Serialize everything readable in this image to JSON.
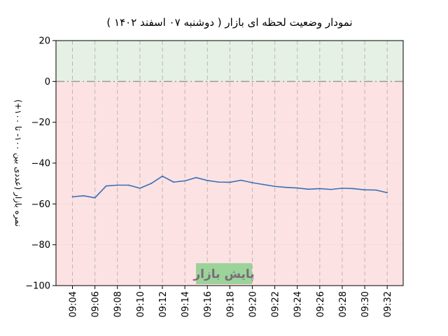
{
  "chart_data": {
    "type": "line",
    "title": "نمودار وضعیت لحظه ای بازار   ( دوشنبه ۰۷ اسفند ۱۴۰۲ )",
    "ylabel": "نمره بازار (عددی بین ۱۰۰- تا ۱۰۰+)",
    "xlabel": "",
    "ylim": [
      -100,
      20
    ],
    "yticks": [
      20,
      0,
      -20,
      -40,
      -60,
      -80,
      -100
    ],
    "ytick_labels": [
      "20",
      "0",
      "−20",
      "−40",
      "−60",
      "−80",
      "−100"
    ],
    "xticks": [
      "09:04",
      "09:06",
      "09:08",
      "09:10",
      "09:12",
      "09:14",
      "09:16",
      "09:18",
      "09:20",
      "09:22",
      "09:24",
      "09:26",
      "09:28",
      "09:30",
      "09:32"
    ],
    "grid": true,
    "zero_line": 0,
    "regions": [
      {
        "from": 0,
        "to": 20,
        "color": "#e5f1e4"
      },
      {
        "from": -100,
        "to": 0,
        "color": "#fde2e3"
      }
    ],
    "series": [
      {
        "color": "#3a6fb5",
        "x": [
          "09:04",
          "09:05",
          "09:06",
          "09:07",
          "09:08",
          "09:09",
          "09:10",
          "09:11",
          "09:12",
          "09:13",
          "09:14",
          "09:15",
          "09:16",
          "09:17",
          "09:18",
          "09:19",
          "09:20",
          "09:21",
          "09:22",
          "09:23",
          "09:24",
          "09:25",
          "09:26",
          "09:27",
          "09:28",
          "09:29",
          "09:30",
          "09:31",
          "09:32"
        ],
        "values": [
          -56.5,
          -56,
          -57,
          -51.2,
          -50.8,
          -50.8,
          -52.3,
          -50,
          -46.4,
          -49.3,
          -48.7,
          -47.1,
          -48.5,
          -49.3,
          -49.4,
          -48.4,
          -49.6,
          -50.5,
          -51.4,
          -51.9,
          -52.2,
          -52.8,
          -52.5,
          -52.9,
          -52.3,
          -52.5,
          -53.1,
          -53.2,
          -54.5
        ]
      }
    ],
    "annotation": {
      "text": "پایش بازار",
      "box_color": "#9bd39a"
    }
  }
}
